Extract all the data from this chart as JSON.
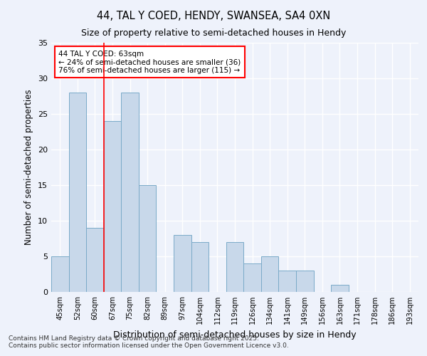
{
  "title1": "44, TAL Y COED, HENDY, SWANSEA, SA4 0XN",
  "title2": "Size of property relative to semi-detached houses in Hendy",
  "xlabel": "Distribution of semi-detached houses by size in Hendy",
  "ylabel": "Number of semi-detached properties",
  "categories": [
    "45sqm",
    "52sqm",
    "60sqm",
    "67sqm",
    "75sqm",
    "82sqm",
    "89sqm",
    "97sqm",
    "104sqm",
    "112sqm",
    "119sqm",
    "126sqm",
    "134sqm",
    "141sqm",
    "149sqm",
    "156sqm",
    "163sqm",
    "171sqm",
    "178sqm",
    "186sqm",
    "193sqm"
  ],
  "values": [
    5,
    28,
    9,
    24,
    28,
    15,
    0,
    8,
    7,
    0,
    7,
    4,
    5,
    3,
    3,
    0,
    1,
    0,
    0,
    0,
    0
  ],
  "bar_color": "#c8d8ea",
  "bar_edge_color": "#7aaac8",
  "property_line_x": 2.5,
  "property_sqm": "63sqm",
  "pct_smaller": 24,
  "count_smaller": 36,
  "pct_larger": 76,
  "count_larger": 115,
  "background_color": "#eef2fb",
  "grid_color": "#ffffff",
  "ylim": [
    0,
    35
  ],
  "yticks": [
    0,
    5,
    10,
    15,
    20,
    25,
    30,
    35
  ],
  "footer1": "Contains HM Land Registry data © Crown copyright and database right 2025.",
  "footer2": "Contains public sector information licensed under the Open Government Licence v3.0."
}
